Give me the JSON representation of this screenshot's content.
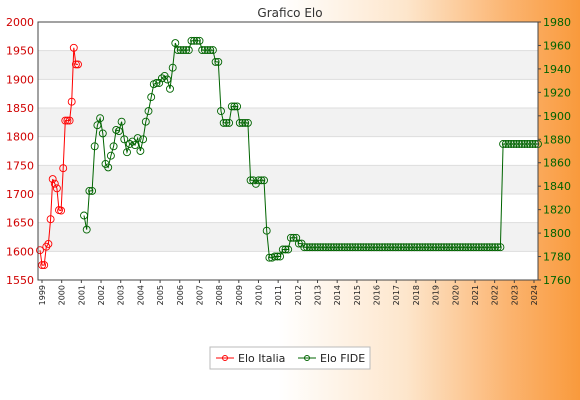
{
  "chart_data": {
    "type": "line",
    "title": "Grafico Elo",
    "grid": true,
    "legend_position": "bottom",
    "y_left": {
      "min": 1550,
      "max": 2000,
      "ticks": [
        1550,
        1600,
        1650,
        1700,
        1750,
        1800,
        1850,
        1900,
        1950,
        2000
      ]
    },
    "y_right": {
      "min": 1760,
      "max": 1980,
      "ticks": [
        1760,
        1780,
        1800,
        1820,
        1840,
        1860,
        1880,
        1900,
        1920,
        1940,
        1960,
        1980
      ]
    },
    "x_tick_labels": [
      "1999",
      "2000",
      "2001",
      "2002",
      "2003",
      "2004",
      "2005",
      "2006",
      "2007",
      "2008",
      "2009",
      "2010",
      "2011",
      "2012",
      "2013",
      "2014",
      "2015",
      "2016",
      "2017",
      "2018",
      "2019",
      "2020",
      "2021",
      "2022",
      "2023",
      "2024"
    ],
    "series": [
      {
        "name": "Elo Italia",
        "axis": "left",
        "color": "#ff0000",
        "values": [
          1602,
          1576,
          1576,
          1608,
          1613,
          1656,
          1726,
          1718,
          1710,
          1672,
          1671,
          1745,
          1828,
          1828,
          1828,
          1861,
          1955,
          1926,
          1926
        ]
      },
      {
        "name": "Elo FIDE",
        "axis": "right",
        "color": "#006400",
        "values": [
          1815,
          1803,
          1836,
          1836,
          1874,
          1892,
          1898,
          1885,
          1859,
          1856,
          1866,
          1874,
          1888,
          1887,
          1895,
          1880,
          1869,
          1876,
          1878,
          1875,
          1881,
          1870,
          1880,
          1895,
          1904,
          1916,
          1927,
          1928,
          1928,
          1932,
          1934,
          1931,
          1923,
          1941,
          1962,
          1956,
          1956,
          1956,
          1956,
          1956,
          1964,
          1964,
          1964,
          1964,
          1956,
          1956,
          1956,
          1956,
          1956,
          1946,
          1946,
          1904,
          1894,
          1894,
          1894,
          1908,
          1908,
          1908,
          1894,
          1894,
          1894,
          1894,
          1845,
          1845,
          1842,
          1845,
          1845,
          1845,
          1802,
          1779,
          1779,
          1780,
          1780,
          1780,
          1786,
          1786,
          1786,
          1796,
          1796,
          1796,
          1791,
          1791,
          1788,
          1788,
          1788,
          1788,
          1788,
          1788,
          1788,
          1788,
          1788,
          1788,
          1788,
          1788,
          1788,
          1788,
          1788,
          1788,
          1788,
          1788,
          1788,
          1788,
          1788,
          1788,
          1788,
          1788,
          1788,
          1788,
          1788,
          1788,
          1788,
          1788,
          1788,
          1788,
          1788,
          1788,
          1788,
          1788,
          1788,
          1788,
          1788,
          1788,
          1788,
          1788,
          1788,
          1788,
          1788,
          1788,
          1788,
          1788,
          1788,
          1788,
          1788,
          1788,
          1788,
          1788,
          1788,
          1788,
          1788,
          1788,
          1788,
          1788,
          1788,
          1788,
          1788,
          1788,
          1788,
          1788,
          1788,
          1788,
          1788,
          1788,
          1788,
          1788,
          1788,
          1788,
          1876,
          1876,
          1876,
          1876,
          1876,
          1876,
          1876,
          1876,
          1876,
          1876,
          1876,
          1876,
          1876,
          1876
        ]
      }
    ]
  }
}
